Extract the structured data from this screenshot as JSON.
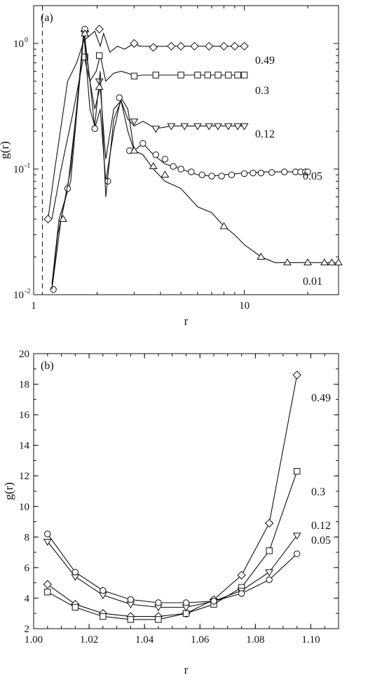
{
  "chart_data": [
    {
      "type": "line",
      "panel_label": "(a)",
      "xlabel": "r",
      "ylabel": "g(r)",
      "xscale": "log",
      "yscale": "log",
      "xlim": [
        1,
        28
      ],
      "ylim": [
        0.01,
        2
      ],
      "x_ticks": [
        1,
        10
      ],
      "x_tick_labels": [
        "1",
        "10"
      ],
      "y_ticks": [
        0.01,
        0.1,
        1
      ],
      "y_tick_labels": [
        "10",
        "10",
        "10"
      ],
      "y_tick_exponents": [
        "-2",
        "-1",
        "0"
      ],
      "vline_dashed": 1.1,
      "series": [
        {
          "label": "0.49",
          "marker": "diamond",
          "x": [
            1.17,
            1.26,
            1.45,
            1.6,
            1.73,
            1.95,
            2.07,
            2.15,
            2.3,
            2.5,
            2.7,
            2.85,
            3.0,
            3.2,
            3.5,
            4.0,
            5.0,
            6.0,
            8.0,
            10.0
          ],
          "y": [
            0.04,
            0.1,
            0.5,
            0.7,
            1.05,
            1.25,
            0.95,
            1.2,
            0.85,
            0.95,
            0.9,
            0.95,
            1.0,
            0.95,
            0.95,
            0.95,
            0.95,
            0.95,
            0.95,
            0.95
          ],
          "marker_x": [
            1.17,
            1.75,
            2.05,
            3.0,
            3.7,
            4.5,
            5.0,
            5.8,
            6.8,
            8.0,
            9.0,
            10.0
          ],
          "marker_y": [
            0.04,
            1.25,
            1.3,
            1.0,
            0.93,
            0.95,
            0.95,
            0.95,
            0.95,
            0.95,
            0.95,
            0.95
          ]
        },
        {
          "label": "0.3",
          "marker": "square",
          "x": [
            1.22,
            1.35,
            1.55,
            1.73,
            1.85,
            1.98,
            2.07,
            2.2,
            2.4,
            2.6,
            2.8,
            3.0,
            3.3,
            3.8,
            4.5,
            6.0,
            8.0,
            10.0
          ],
          "y": [
            0.04,
            0.1,
            0.3,
            0.8,
            0.5,
            0.6,
            0.8,
            0.5,
            0.58,
            0.6,
            0.58,
            0.55,
            0.56,
            0.56,
            0.56,
            0.56,
            0.56,
            0.56
          ],
          "marker_x": [
            1.75,
            2.05,
            3.0,
            3.8,
            5.0,
            6.0,
            6.7,
            7.5,
            8.4,
            9.3,
            10.0
          ],
          "marker_y": [
            0.78,
            0.8,
            0.55,
            0.56,
            0.56,
            0.56,
            0.56,
            0.56,
            0.56,
            0.56,
            0.56
          ]
        },
        {
          "label": "0.12",
          "marker": "tri-down",
          "x": [
            1.22,
            1.32,
            1.5,
            1.73,
            1.85,
            1.95,
            2.07,
            2.2,
            2.4,
            2.6,
            2.8,
            3.0,
            3.3,
            3.8,
            4.5,
            6.0,
            8.0,
            10.0
          ],
          "y": [
            0.012,
            0.04,
            0.08,
            1.2,
            0.5,
            0.3,
            0.45,
            0.12,
            0.3,
            0.35,
            0.25,
            0.22,
            0.24,
            0.21,
            0.22,
            0.22,
            0.22,
            0.22
          ],
          "marker_x": [
            1.75,
            2.05,
            3.0,
            3.8,
            4.5,
            5.2,
            6.0,
            6.8,
            7.5,
            8.4,
            9.3,
            10.0
          ],
          "marker_y": [
            1.2,
            0.5,
            0.24,
            0.21,
            0.22,
            0.22,
            0.22,
            0.22,
            0.22,
            0.22,
            0.22,
            0.22
          ]
        },
        {
          "label": "0.05",
          "marker": "circle",
          "x": [
            1.22,
            1.3,
            1.45,
            1.6,
            1.73,
            1.85,
            1.95,
            2.07,
            2.2,
            2.4,
            2.6,
            2.8,
            3.0,
            3.3,
            3.7,
            4.2,
            5.0,
            6.0,
            7.0,
            8.0,
            10.0,
            13.0,
            16.0,
            20.0
          ],
          "y": [
            0.011,
            0.03,
            0.07,
            0.3,
            1.3,
            0.5,
            0.21,
            0.3,
            0.08,
            0.2,
            0.37,
            0.3,
            0.14,
            0.16,
            0.13,
            0.11,
            0.1,
            0.09,
            0.088,
            0.09,
            0.093,
            0.095,
            0.095,
            0.095
          ],
          "marker_x": [
            1.24,
            1.45,
            1.75,
            1.95,
            2.25,
            2.55,
            2.85,
            3.3,
            3.8,
            4.2,
            4.6,
            5.0,
            5.6,
            6.3,
            7.0,
            7.8,
            8.7,
            10.0,
            11.0,
            12.0,
            13.5,
            15.5,
            17.5,
            18.5,
            19.5,
            20.0
          ],
          "marker_y": [
            0.011,
            0.07,
            1.3,
            0.21,
            0.08,
            0.37,
            0.14,
            0.16,
            0.13,
            0.12,
            0.105,
            0.1,
            0.095,
            0.09,
            0.088,
            0.088,
            0.09,
            0.092,
            0.093,
            0.093,
            0.094,
            0.095,
            0.095,
            0.095,
            0.095,
            0.095
          ]
        },
        {
          "label": "0.01",
          "marker": "tri-up",
          "x": [
            1.22,
            1.35,
            1.5,
            1.73,
            1.85,
            1.95,
            2.07,
            2.2,
            2.4,
            2.6,
            2.8,
            3.0,
            3.3,
            3.7,
            4.2,
            5.0,
            6.0,
            7.0,
            8.0,
            9.0,
            10.0,
            12.0,
            14.0,
            16.0,
            20.0,
            25.0,
            28.0
          ],
          "y": [
            0.011,
            0.04,
            0.1,
            1.2,
            0.3,
            0.22,
            0.6,
            0.06,
            0.25,
            0.35,
            0.2,
            0.14,
            0.13,
            0.1,
            0.08,
            0.07,
            0.05,
            0.045,
            0.035,
            0.03,
            0.025,
            0.02,
            0.018,
            0.018,
            0.018,
            0.018,
            0.018
          ],
          "marker_x": [
            1.38,
            1.75,
            2.05,
            3.0,
            3.7,
            4.2,
            8.0,
            12.0,
            16.0,
            20.0,
            24.0,
            26.0,
            28.0
          ],
          "marker_y": [
            0.04,
            1.2,
            0.45,
            0.14,
            0.105,
            0.09,
            0.035,
            0.02,
            0.018,
            0.018,
            0.018,
            0.018,
            0.018
          ]
        }
      ]
    },
    {
      "type": "line",
      "panel_label": "(b)",
      "xlabel": "r",
      "ylabel": "g(r)",
      "xlim": [
        1.0,
        1.11
      ],
      "ylim": [
        2,
        20
      ],
      "x_ticks": [
        1.0,
        1.02,
        1.04,
        1.06,
        1.08,
        1.1
      ],
      "x_tick_labels": [
        "1.00",
        "1.02",
        "1.04",
        "1.06",
        "1.08",
        "1.10"
      ],
      "y_ticks": [
        2,
        4,
        6,
        8,
        10,
        12,
        14,
        16,
        18,
        20
      ],
      "y_tick_labels": [
        "2",
        "4",
        "6",
        "8",
        "10",
        "12",
        "14",
        "16",
        "18",
        "20"
      ],
      "series": [
        {
          "label": "0.49",
          "marker": "diamond",
          "x": [
            1.005,
            1.015,
            1.025,
            1.035,
            1.045,
            1.055,
            1.065,
            1.075,
            1.085,
            1.095
          ],
          "y": [
            4.9,
            3.6,
            3.0,
            2.8,
            2.8,
            3.0,
            3.9,
            5.5,
            8.9,
            18.6
          ]
        },
        {
          "label": "0.3",
          "marker": "square",
          "x": [
            1.005,
            1.015,
            1.025,
            1.035,
            1.045,
            1.055,
            1.065,
            1.075,
            1.085,
            1.095
          ],
          "y": [
            4.4,
            3.4,
            2.8,
            2.6,
            2.6,
            3.0,
            3.6,
            4.7,
            7.1,
            12.3
          ]
        },
        {
          "label": "0.12",
          "marker": "tri-down",
          "x": [
            1.005,
            1.015,
            1.025,
            1.035,
            1.045,
            1.055,
            1.065,
            1.075,
            1.085,
            1.095
          ],
          "y": [
            7.7,
            5.4,
            4.2,
            3.6,
            3.4,
            3.4,
            3.8,
            4.5,
            5.7,
            8.1
          ]
        },
        {
          "label": "0.05",
          "marker": "circle",
          "x": [
            1.005,
            1.015,
            1.025,
            1.035,
            1.045,
            1.055,
            1.065,
            1.075,
            1.085,
            1.095
          ],
          "y": [
            8.2,
            5.7,
            4.5,
            3.9,
            3.7,
            3.7,
            3.8,
            4.3,
            5.2,
            6.9
          ]
        }
      ]
    }
  ]
}
